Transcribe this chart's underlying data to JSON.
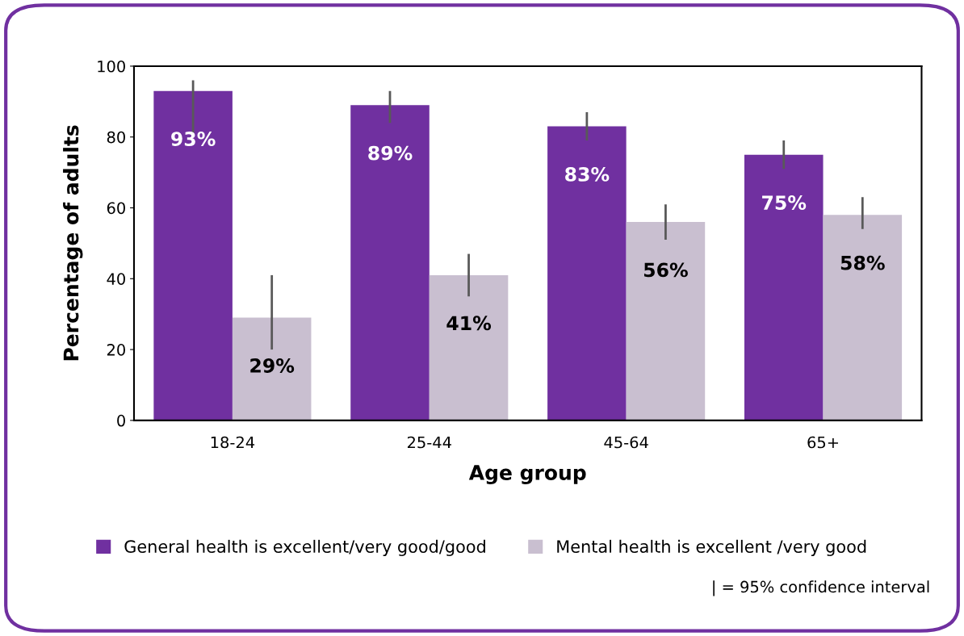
{
  "chart_data": {
    "type": "bar",
    "xlabel": "Age group",
    "ylabel": "Percentage of adults",
    "categories": [
      "18-24",
      "25-44",
      "45-64",
      "65+"
    ],
    "series": [
      {
        "name": "General health is excellent/very good/good",
        "color": "#7030a0",
        "values": [
          93,
          89,
          83,
          75
        ],
        "errors": [
          [
            81,
            96
          ],
          [
            84,
            93
          ],
          [
            79,
            87
          ],
          [
            71,
            79
          ]
        ],
        "value_labels": [
          "93%",
          "89%",
          "83%",
          "75%"
        ]
      },
      {
        "name": "Mental health is excellent /very good",
        "color": "#c9bfd0",
        "values": [
          29,
          41,
          56,
          58
        ],
        "errors": [
          [
            20,
            41
          ],
          [
            35,
            47
          ],
          [
            51,
            61
          ],
          [
            54,
            63
          ]
        ],
        "value_labels": [
          "29%",
          "41%",
          "56%",
          "58%"
        ]
      }
    ],
    "ylim": [
      0,
      100
    ],
    "yticks": [
      0,
      20,
      40,
      60,
      80,
      100
    ],
    "grid": false,
    "legend": "bottom",
    "annotations": [
      "| = 95% confidence interval"
    ]
  }
}
